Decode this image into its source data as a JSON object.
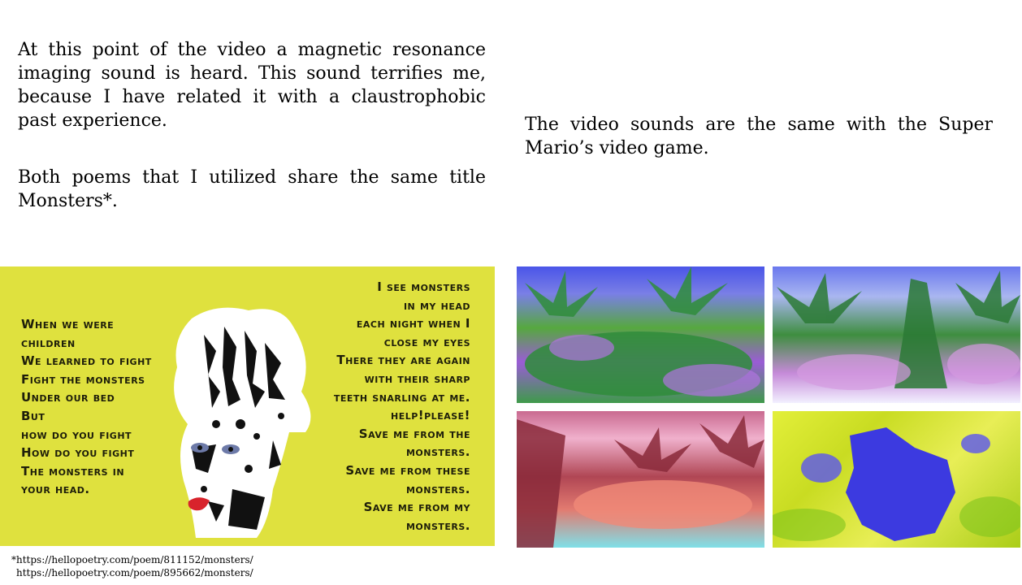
{
  "paragraphs": {
    "mri": "At this point of the video a magnetic resonance imaging sound is heard. This sound terrifies me, because I have related it with a claustrophobic past experience.",
    "poems": "Both poems that I utilized share the same title Monsters*.",
    "mario": "The video sounds are the same with the Super Mario’s video game."
  },
  "poem": {
    "left_lines": [
      "When we were",
      "children",
      "We learned to fight",
      "Fight the monsters",
      "Under our bed",
      "But",
      "how do you fight",
      "How do you fight",
      "The monsters in",
      "your head."
    ],
    "right_lines": [
      "I see monsters",
      "in my head",
      "each night when I",
      "close my eyes",
      "There they are again",
      "with their sharp",
      "teeth snarling at me.",
      "help!please!",
      "Save me from the",
      "monsters.",
      "Save me from these",
      "monsters.",
      "Save me from my",
      "monsters."
    ],
    "background_color": "#dfe13e"
  },
  "references": [
    "*https://hellopoetry.com/poem/811152/monsters/",
    "https://hellopoetry.com/poem/895662/monsters/"
  ]
}
